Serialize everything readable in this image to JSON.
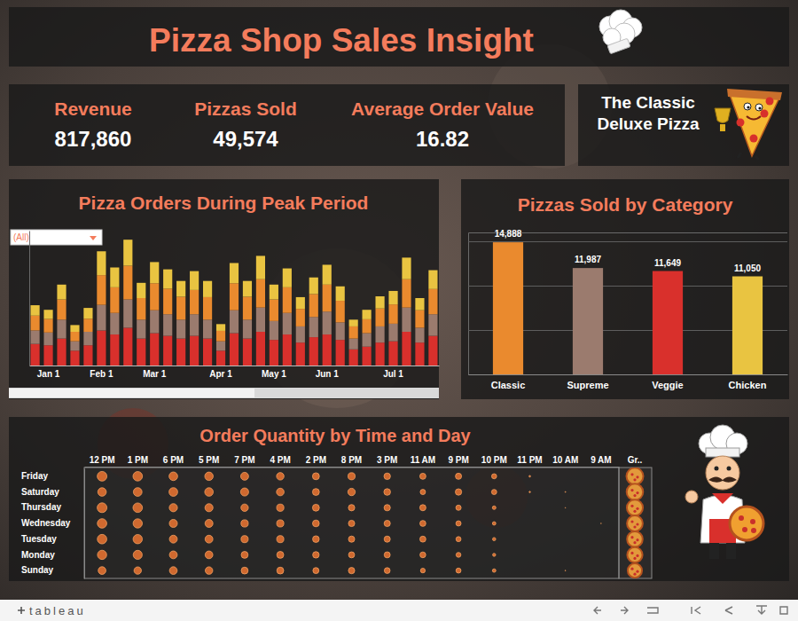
{
  "header": {
    "title": "Pizza Shop Sales Insight"
  },
  "kpis": [
    {
      "label": "Revenue",
      "value": "817,860"
    },
    {
      "label": "Pizzas Sold",
      "value": "49,574"
    },
    {
      "label": "Average Order Value",
      "value": "16.82"
    }
  ],
  "top_pizza": "The Classic Deluxe Pizza",
  "filter": "(All)",
  "footer": "tableau",
  "chart_data": [
    {
      "type": "bar",
      "title": "Pizza Orders During Peak Period",
      "stacked": true,
      "categories": [
        null,
        "Jan 1",
        null,
        null,
        null,
        "Feb 1",
        null,
        null,
        null,
        "Mar 1",
        null,
        null,
        null,
        null,
        "Apr 1",
        null,
        null,
        null,
        "May 1",
        null,
        null,
        null,
        "Jun 1",
        null,
        null,
        null,
        null,
        "Jul 1",
        null,
        null,
        null
      ],
      "series": [
        {
          "color": "#d9302c",
          "values": [
            160,
            150,
            200,
            110,
            150,
            260,
            230,
            280,
            200,
            240,
            220,
            200,
            220,
            200,
            110,
            240,
            200,
            250,
            190,
            230,
            170,
            210,
            230,
            190,
            120,
            140,
            170,
            180,
            250,
            170,
            220
          ]
        },
        {
          "color": "#9b7b6e",
          "values": [
            100,
            95,
            140,
            70,
            100,
            190,
            160,
            210,
            140,
            170,
            160,
            140,
            160,
            140,
            70,
            170,
            140,
            180,
            140,
            160,
            120,
            150,
            170,
            130,
            80,
            100,
            120,
            130,
            180,
            110,
            160
          ]
        },
        {
          "color": "#ea8a2e",
          "values": [
            110,
            100,
            150,
            70,
            97,
            220,
            190,
            250,
            160,
            200,
            190,
            170,
            180,
            167,
            77,
            200,
            170,
            210,
            160,
            190,
            130,
            170,
            200,
            160,
            90,
            103,
            133,
            143,
            210,
            130,
            187
          ]
        },
        {
          "color": "#e9c441",
          "values": [
            77,
            68,
            110,
            50,
            80,
            177,
            147,
            193,
            113,
            157,
            143,
            117,
            140,
            120,
            50,
            150,
            117,
            173,
            110,
            140,
            87,
            123,
            147,
            107,
            50,
            70,
            90,
            100,
            160,
            90,
            140
          ]
        }
      ],
      "ylim": [
        0,
        1000
      ],
      "tick_labels": "x"
    },
    {
      "type": "bar",
      "title": "Pizzas Sold by Category",
      "categories": [
        "Classic",
        "Supreme",
        "Veggie",
        "Chicken"
      ],
      "values": [
        14888,
        11987,
        11649,
        11050
      ],
      "value_labels": [
        "14,888",
        "11,987",
        "11,649",
        "11,050"
      ],
      "colors": [
        "#ea8a2e",
        "#9b7b6e",
        "#d9302c",
        "#e9c441"
      ],
      "ylim": [
        0,
        16000
      ],
      "yticks": [
        0,
        5000,
        10000,
        15000
      ],
      "grid": true,
      "data_labels": true,
      "tick_labels": "x"
    },
    {
      "type": "bubble",
      "title": "Order Quantity by Time and Day",
      "categories": [
        "12 PM",
        "1 PM",
        "6 PM",
        "5 PM",
        "7 PM",
        "4 PM",
        "2 PM",
        "8 PM",
        "3 PM",
        "11 AM",
        "9 PM",
        "10 PM",
        "11 PM",
        "10 AM",
        "9 AM"
      ],
      "rows": [
        "Friday",
        "Saturday",
        "Thursday",
        "Wednesday",
        "Tuesday",
        "Monday",
        "Sunday"
      ],
      "sizes": [
        [
          1100,
          1050,
          870,
          830,
          740,
          660,
          570,
          600,
          500,
          440,
          450,
          300,
          30,
          0,
          0
        ],
        [
          850,
          880,
          880,
          850,
          760,
          680,
          560,
          640,
          520,
          330,
          480,
          320,
          25,
          8,
          0
        ],
        [
          1120,
          1050,
          780,
          760,
          640,
          620,
          560,
          480,
          470,
          450,
          330,
          150,
          0,
          4,
          0
        ],
        [
          1050,
          1000,
          760,
          740,
          620,
          600,
          540,
          470,
          460,
          420,
          320,
          140,
          0,
          0,
          4
        ],
        [
          1060,
          1010,
          730,
          720,
          600,
          600,
          520,
          460,
          450,
          430,
          300,
          120,
          0,
          0,
          0
        ],
        [
          1000,
          960,
          720,
          700,
          560,
          570,
          500,
          430,
          430,
          400,
          280,
          110,
          0,
          0,
          0
        ],
        [
          700,
          640,
          700,
          660,
          560,
          560,
          430,
          470,
          400,
          260,
          300,
          140,
          0,
          6,
          0
        ]
      ],
      "total_label": "Gr..",
      "totals": [
        8140,
        7783,
        7414,
        7124,
        7000,
        6660,
        5826
      ],
      "color": "#d0692f"
    }
  ]
}
